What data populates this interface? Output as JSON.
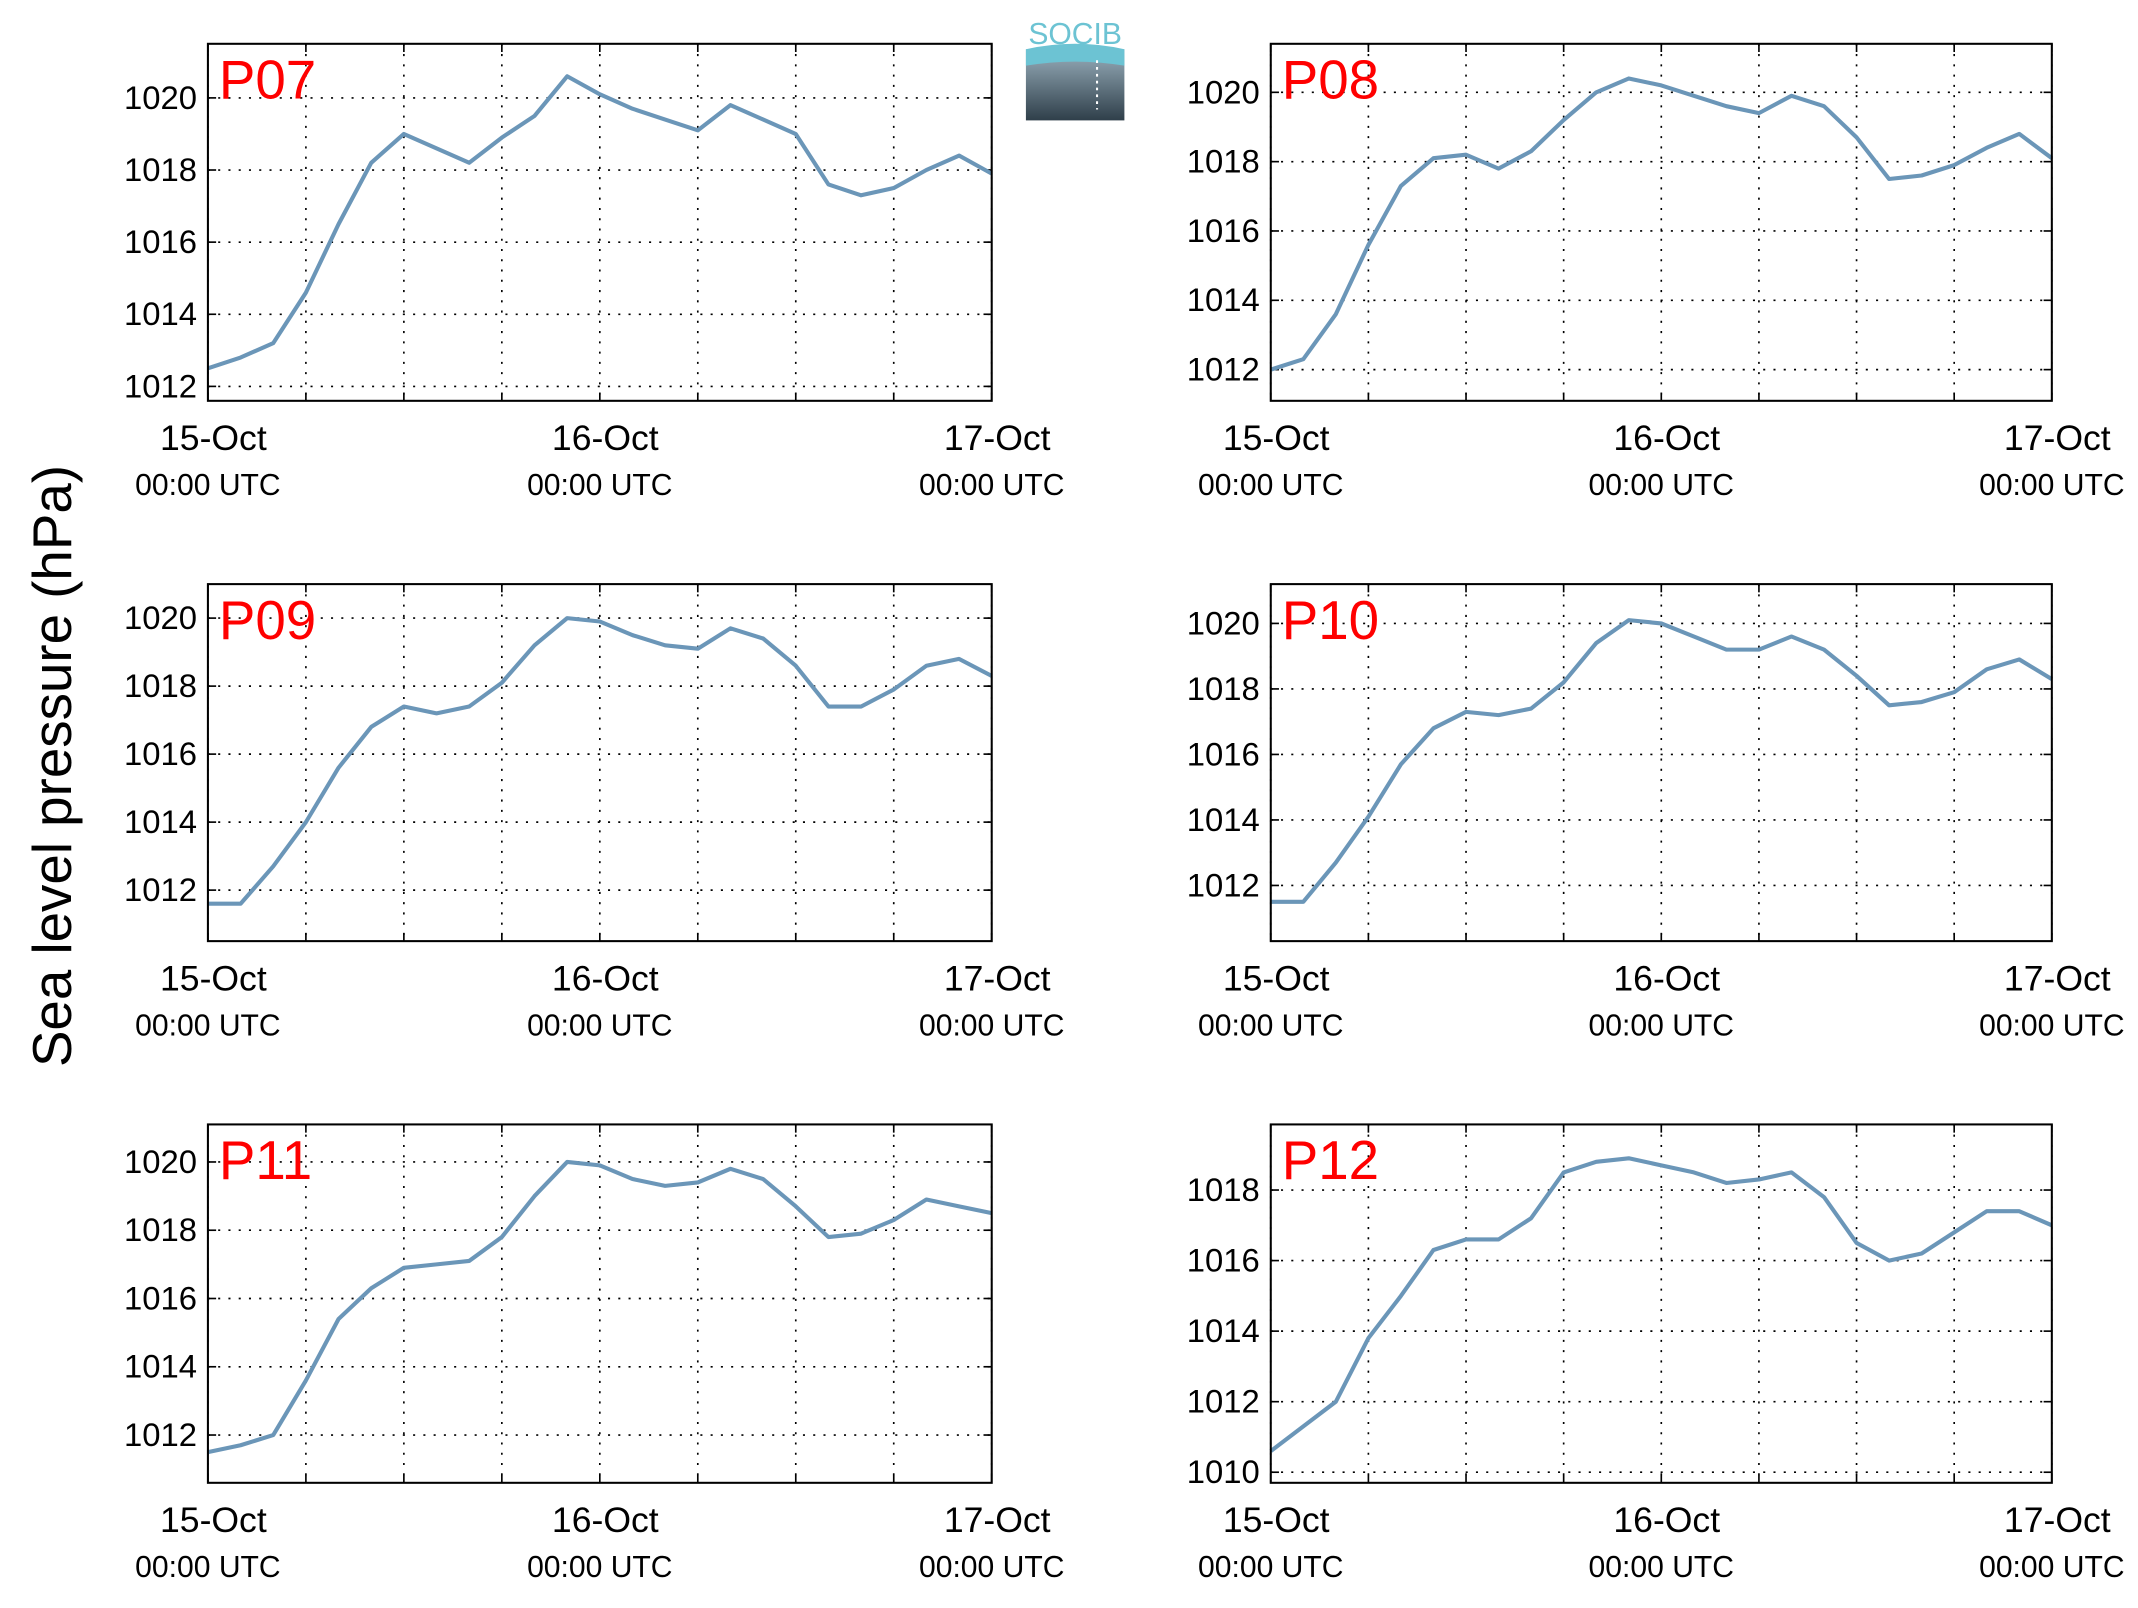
{
  "ylabel": "Sea level pressure (hPa)",
  "logo": "SOCIB",
  "chart_data": [
    {
      "type": "line",
      "title": "P07",
      "x": [
        0,
        2,
        4,
        6,
        8,
        10,
        12,
        14,
        16,
        18,
        20,
        22,
        24,
        26,
        28,
        30,
        32,
        34,
        36,
        38,
        40,
        42,
        44,
        46,
        48
      ],
      "series": [
        {
          "color": "#6b96b8",
          "values": [
            1012.5,
            1012.8,
            1013.2,
            1014.6,
            1016.5,
            1018.2,
            1019.0,
            1018.6,
            1018.2,
            1018.9,
            1019.5,
            1020.6,
            1020.1,
            1019.7,
            1019.4,
            1019.1,
            1019.8,
            1019.4,
            1019.0,
            1017.6,
            1017.3,
            1017.5,
            1018.0,
            1018.4,
            1017.9
          ]
        }
      ],
      "xlim": [
        0,
        48
      ],
      "xticks": [
        {
          "value": 0,
          "label": [
            "15-Oct",
            "00:00 UTC"
          ]
        },
        6,
        12,
        18,
        {
          "value": 24,
          "label": [
            "16-Oct",
            "00:00 UTC"
          ]
        },
        30,
        36,
        42,
        {
          "value": 48,
          "label": [
            "17-Oct",
            "00:00 UTC"
          ]
        }
      ],
      "ylim": [
        1011.6,
        1021.5
      ],
      "yticks": [
        1012,
        1014,
        1016,
        1018,
        1020
      ],
      "grid": true
    },
    {
      "type": "line",
      "title": "P08",
      "x": [
        0,
        2,
        4,
        6,
        8,
        10,
        12,
        14,
        16,
        18,
        20,
        22,
        24,
        26,
        28,
        30,
        32,
        34,
        36,
        38,
        40,
        42,
        44,
        46,
        48
      ],
      "series": [
        {
          "color": "#6b96b8",
          "values": [
            1012.0,
            1012.3,
            1013.6,
            1015.6,
            1017.3,
            1018.1,
            1018.2,
            1017.8,
            1018.3,
            1019.2,
            1020.0,
            1020.4,
            1020.2,
            1019.9,
            1019.6,
            1019.4,
            1019.9,
            1019.6,
            1018.7,
            1017.5,
            1017.6,
            1017.9,
            1018.4,
            1018.8,
            1018.1
          ]
        }
      ],
      "xlim": [
        0,
        48
      ],
      "xticks": [
        {
          "value": 0,
          "label": [
            "15-Oct",
            "00:00 UTC"
          ]
        },
        6,
        12,
        18,
        {
          "value": 24,
          "label": [
            "16-Oct",
            "00:00 UTC"
          ]
        },
        30,
        36,
        42,
        {
          "value": 48,
          "label": [
            "17-Oct",
            "00:00 UTC"
          ]
        }
      ],
      "ylim": [
        1011.1,
        1021.4
      ],
      "yticks": [
        1012,
        1014,
        1016,
        1018,
        1020
      ],
      "grid": true
    },
    {
      "type": "line",
      "title": "P09",
      "x": [
        0,
        2,
        4,
        6,
        8,
        10,
        12,
        14,
        16,
        18,
        20,
        22,
        24,
        26,
        28,
        30,
        32,
        34,
        36,
        38,
        40,
        42,
        44,
        46,
        48
      ],
      "series": [
        {
          "color": "#6b96b8",
          "values": [
            1011.6,
            1011.6,
            1012.7,
            1014.0,
            1015.6,
            1016.8,
            1017.4,
            1017.2,
            1017.4,
            1018.1,
            1019.2,
            1020.0,
            1019.9,
            1019.5,
            1019.2,
            1019.1,
            1019.7,
            1019.4,
            1018.6,
            1017.4,
            1017.4,
            1017.9,
            1018.6,
            1018.8,
            1018.3
          ]
        }
      ],
      "xlim": [
        0,
        48
      ],
      "xticks": [
        {
          "value": 0,
          "label": [
            "15-Oct",
            "00:00 UTC"
          ]
        },
        6,
        12,
        18,
        {
          "value": 24,
          "label": [
            "16-Oct",
            "00:00 UTC"
          ]
        },
        30,
        36,
        42,
        {
          "value": 48,
          "label": [
            "17-Oct",
            "00:00 UTC"
          ]
        }
      ],
      "ylim": [
        1010.5,
        1021.0
      ],
      "yticks": [
        1012,
        1014,
        1016,
        1018,
        1020
      ],
      "grid": true
    },
    {
      "type": "line",
      "title": "P10",
      "x": [
        0,
        2,
        4,
        6,
        8,
        10,
        12,
        14,
        16,
        18,
        20,
        22,
        24,
        26,
        28,
        30,
        32,
        34,
        36,
        38,
        40,
        42,
        44,
        46,
        48
      ],
      "series": [
        {
          "color": "#6b96b8",
          "values": [
            1011.5,
            1011.5,
            1012.7,
            1014.1,
            1015.7,
            1016.8,
            1017.3,
            1017.2,
            1017.4,
            1018.2,
            1019.4,
            1020.1,
            1020.0,
            1019.6,
            1019.2,
            1019.2,
            1019.6,
            1019.2,
            1018.4,
            1017.5,
            1017.6,
            1017.9,
            1018.6,
            1018.9,
            1018.3
          ]
        }
      ],
      "xlim": [
        0,
        48
      ],
      "xticks": [
        {
          "value": 0,
          "label": [
            "15-Oct",
            "00:00 UTC"
          ]
        },
        6,
        12,
        18,
        {
          "value": 24,
          "label": [
            "16-Oct",
            "00:00 UTC"
          ]
        },
        30,
        36,
        42,
        {
          "value": 48,
          "label": [
            "17-Oct",
            "00:00 UTC"
          ]
        }
      ],
      "ylim": [
        1010.3,
        1021.2
      ],
      "yticks": [
        1012,
        1014,
        1016,
        1018,
        1020
      ],
      "grid": true
    },
    {
      "type": "line",
      "title": "P11",
      "x": [
        0,
        2,
        4,
        6,
        8,
        10,
        12,
        14,
        16,
        18,
        20,
        22,
        24,
        26,
        28,
        30,
        32,
        34,
        36,
        38,
        40,
        42,
        44,
        46,
        48
      ],
      "series": [
        {
          "color": "#6b96b8",
          "values": [
            1011.5,
            1011.7,
            1012.0,
            1013.6,
            1015.4,
            1016.3,
            1016.9,
            1017.0,
            1017.1,
            1017.8,
            1019.0,
            1020.0,
            1019.9,
            1019.5,
            1019.3,
            1019.4,
            1019.8,
            1019.5,
            1018.7,
            1017.8,
            1017.9,
            1018.3,
            1018.9,
            1018.7,
            1018.5
          ]
        }
      ],
      "xlim": [
        0,
        48
      ],
      "xticks": [
        {
          "value": 0,
          "label": [
            "15-Oct",
            "00:00 UTC"
          ]
        },
        6,
        12,
        18,
        {
          "value": 24,
          "label": [
            "16-Oct",
            "00:00 UTC"
          ]
        },
        30,
        36,
        42,
        {
          "value": 48,
          "label": [
            "17-Oct",
            "00:00 UTC"
          ]
        }
      ],
      "ylim": [
        1010.6,
        1021.1
      ],
      "yticks": [
        1012,
        1014,
        1016,
        1018,
        1020
      ],
      "grid": true
    },
    {
      "type": "line",
      "title": "P12",
      "x": [
        0,
        2,
        4,
        6,
        8,
        10,
        12,
        14,
        16,
        18,
        20,
        22,
        24,
        26,
        28,
        30,
        32,
        34,
        36,
        38,
        40,
        42,
        44,
        46,
        48
      ],
      "series": [
        {
          "color": "#6b96b8",
          "values": [
            1010.6,
            1011.3,
            1012.0,
            1013.8,
            1015.0,
            1016.3,
            1016.6,
            1016.6,
            1017.2,
            1018.5,
            1018.8,
            1018.9,
            1018.7,
            1018.5,
            1018.2,
            1018.3,
            1018.5,
            1017.8,
            1016.5,
            1016.0,
            1016.2,
            1016.8,
            1017.4,
            1017.4,
            1017.0
          ]
        }
      ],
      "xlim": [
        0,
        48
      ],
      "xticks": [
        {
          "value": 0,
          "label": [
            "15-Oct",
            "00:00 UTC"
          ]
        },
        6,
        12,
        18,
        {
          "value": 24,
          "label": [
            "16-Oct",
            "00:00 UTC"
          ]
        },
        30,
        36,
        42,
        {
          "value": 48,
          "label": [
            "17-Oct",
            "00:00 UTC"
          ]
        }
      ],
      "ylim": [
        1009.7,
        1019.86
      ],
      "yticks": [
        1010,
        1012,
        1014,
        1016,
        1018
      ],
      "grid": true
    }
  ]
}
